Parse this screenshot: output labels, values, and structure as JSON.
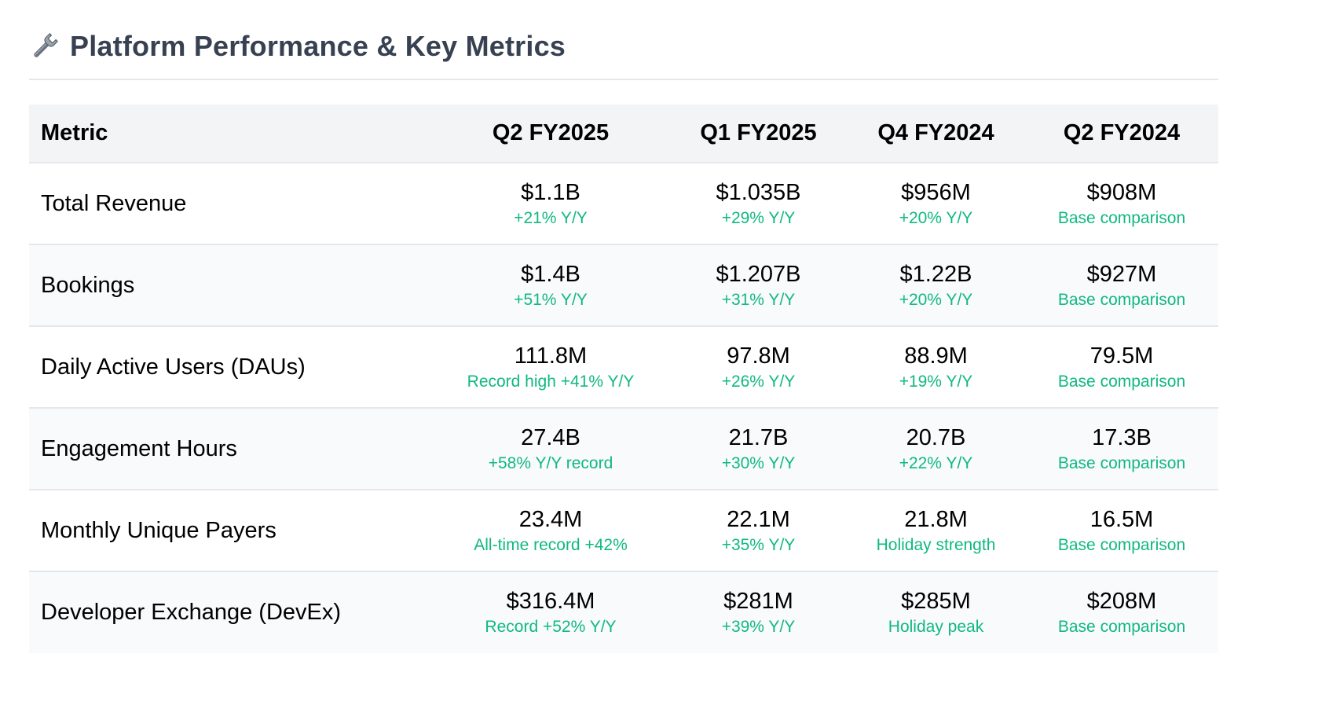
{
  "heading": {
    "icon": "wrench-icon",
    "title": "Platform Performance & Key Metrics"
  },
  "colors": {
    "title": "#374151",
    "note_green": "#10b981",
    "header_bg": "#f3f4f6",
    "alt_row_bg": "#f9fafb",
    "border": "#e5e7eb"
  },
  "table": {
    "columns": [
      "Metric",
      "Q2 FY2025",
      "Q1 FY2025",
      "Q4 FY2024",
      "Q2 FY2024"
    ],
    "rows": [
      {
        "metric": "Total Revenue",
        "cells": [
          {
            "value": "$1.1B",
            "note": "+21% Y/Y"
          },
          {
            "value": "$1.035B",
            "note": "+29% Y/Y"
          },
          {
            "value": "$956M",
            "note": "+20% Y/Y"
          },
          {
            "value": "$908M",
            "note": "Base comparison"
          }
        ]
      },
      {
        "metric": "Bookings",
        "cells": [
          {
            "value": "$1.4B",
            "note": "+51% Y/Y"
          },
          {
            "value": "$1.207B",
            "note": "+31% Y/Y"
          },
          {
            "value": "$1.22B",
            "note": "+20% Y/Y"
          },
          {
            "value": "$927M",
            "note": "Base comparison"
          }
        ]
      },
      {
        "metric": "Daily Active Users (DAUs)",
        "cells": [
          {
            "value": "111.8M",
            "note": "Record high +41% Y/Y"
          },
          {
            "value": "97.8M",
            "note": "+26% Y/Y"
          },
          {
            "value": "88.9M",
            "note": "+19% Y/Y"
          },
          {
            "value": "79.5M",
            "note": "Base comparison"
          }
        ]
      },
      {
        "metric": "Engagement Hours",
        "cells": [
          {
            "value": "27.4B",
            "note": "+58% Y/Y record"
          },
          {
            "value": "21.7B",
            "note": "+30% Y/Y"
          },
          {
            "value": "20.7B",
            "note": "+22% Y/Y"
          },
          {
            "value": "17.3B",
            "note": "Base comparison"
          }
        ]
      },
      {
        "metric": "Monthly Unique Payers",
        "cells": [
          {
            "value": "23.4M",
            "note": "All-time record +42%"
          },
          {
            "value": "22.1M",
            "note": "+35% Y/Y"
          },
          {
            "value": "21.8M",
            "note": "Holiday strength"
          },
          {
            "value": "16.5M",
            "note": "Base comparison"
          }
        ]
      },
      {
        "metric": "Developer Exchange (DevEx)",
        "cells": [
          {
            "value": "$316.4M",
            "note": "Record +52% Y/Y"
          },
          {
            "value": "$281M",
            "note": "+39% Y/Y"
          },
          {
            "value": "$285M",
            "note": "Holiday peak"
          },
          {
            "value": "$208M",
            "note": "Base comparison"
          }
        ]
      }
    ]
  }
}
